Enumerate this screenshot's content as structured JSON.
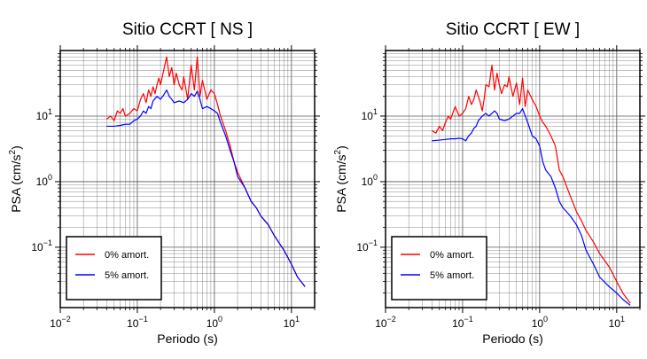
{
  "chart_data": [
    {
      "type": "line",
      "title": "Sitio CCRT [ NS ]",
      "xlabel": "Periodo (s)",
      "ylabel_main": "PSA (cm/s",
      "ylabel_exp": "2",
      "ylabel_close": ")",
      "x_scale": "log",
      "y_scale": "log",
      "xlim": [
        0.01,
        20
      ],
      "ylim": [
        0.012,
        100
      ],
      "grid": true,
      "legend_position": "bottom-left",
      "x_ticks": [
        {
          "value": 0.01,
          "base": "10",
          "exp": "−2"
        },
        {
          "value": 0.1,
          "base": "10",
          "exp": "−1"
        },
        {
          "value": 1,
          "base": "10",
          "exp": "0"
        },
        {
          "value": 10,
          "base": "10",
          "exp": "1"
        }
      ],
      "y_ticks": [
        {
          "value": 0.1,
          "base": "10",
          "exp": "−1"
        },
        {
          "value": 1,
          "base": "10",
          "exp": "0"
        },
        {
          "value": 10,
          "base": "10",
          "exp": "1"
        }
      ],
      "series": [
        {
          "name": "0% amort.",
          "color": "#ff0000",
          "x": [
            0.04,
            0.045,
            0.05,
            0.055,
            0.06,
            0.065,
            0.07,
            0.08,
            0.09,
            0.1,
            0.11,
            0.12,
            0.13,
            0.14,
            0.15,
            0.16,
            0.17,
            0.18,
            0.19,
            0.2,
            0.22,
            0.24,
            0.26,
            0.28,
            0.3,
            0.32,
            0.35,
            0.38,
            0.4,
            0.45,
            0.5,
            0.55,
            0.6,
            0.65,
            0.7,
            0.8,
            0.9,
            1.0,
            1.1,
            1.2,
            1.4,
            1.6,
            1.8,
            2.0,
            2.5,
            3.0,
            3.5,
            4.0,
            5.0,
            6.0,
            8.0,
            10,
            12,
            15
          ],
          "y": [
            9,
            10,
            8.5,
            12,
            11,
            13,
            10,
            11,
            13,
            12,
            18,
            22,
            16,
            25,
            20,
            28,
            22,
            30,
            38,
            30,
            50,
            80,
            40,
            55,
            30,
            45,
            30,
            25,
            40,
            18,
            60,
            25,
            80,
            20,
            35,
            18,
            25,
            22,
            15,
            10,
            6,
            3.5,
            2.0,
            1.4,
            0.8,
            0.5,
            0.4,
            0.3,
            0.22,
            0.15,
            0.09,
            0.055,
            0.035,
            0.025
          ]
        },
        {
          "name": "5% amort.",
          "color": "#0000ff",
          "x": [
            0.04,
            0.05,
            0.06,
            0.07,
            0.08,
            0.09,
            0.1,
            0.11,
            0.12,
            0.13,
            0.14,
            0.15,
            0.16,
            0.18,
            0.2,
            0.22,
            0.24,
            0.26,
            0.28,
            0.3,
            0.35,
            0.4,
            0.45,
            0.5,
            0.55,
            0.6,
            0.65,
            0.7,
            0.8,
            0.9,
            1.0,
            1.1,
            1.2,
            1.4,
            1.6,
            1.8,
            2.0,
            2.5,
            3.0,
            3.5,
            4.0,
            5.0,
            6.0,
            8.0,
            10,
            12,
            15
          ],
          "y": [
            7,
            7,
            7.2,
            7.5,
            7.5,
            8.5,
            9,
            10,
            12,
            11,
            14,
            13,
            17,
            20,
            18,
            21,
            25,
            20,
            18,
            16,
            17,
            16,
            18,
            22,
            20,
            24,
            18,
            13,
            14,
            13,
            12,
            11,
            8,
            5,
            3,
            2.0,
            1.2,
            0.8,
            0.5,
            0.4,
            0.3,
            0.22,
            0.15,
            0.09,
            0.055,
            0.035,
            0.025
          ]
        }
      ]
    },
    {
      "type": "line",
      "title": "Sitio CCRT [ EW ]",
      "xlabel": "Periodo (s)",
      "ylabel_main": "PSA (cm/s",
      "ylabel_exp": "2",
      "ylabel_close": ")",
      "x_scale": "log",
      "y_scale": "log",
      "xlim": [
        0.01,
        20
      ],
      "ylim": [
        0.012,
        100
      ],
      "grid": true,
      "legend_position": "bottom-left",
      "x_ticks": [
        {
          "value": 0.01,
          "base": "10",
          "exp": "−2"
        },
        {
          "value": 0.1,
          "base": "10",
          "exp": "−1"
        },
        {
          "value": 1,
          "base": "10",
          "exp": "0"
        },
        {
          "value": 10,
          "base": "10",
          "exp": "1"
        }
      ],
      "y_ticks": [
        {
          "value": 0.1,
          "base": "10",
          "exp": "−1"
        },
        {
          "value": 1,
          "base": "10",
          "exp": "0"
        },
        {
          "value": 10,
          "base": "10",
          "exp": "1"
        }
      ],
      "series": [
        {
          "name": "0% amort.",
          "color": "#ff0000",
          "x": [
            0.04,
            0.045,
            0.05,
            0.055,
            0.06,
            0.065,
            0.07,
            0.08,
            0.09,
            0.1,
            0.11,
            0.12,
            0.13,
            0.14,
            0.15,
            0.16,
            0.17,
            0.18,
            0.19,
            0.2,
            0.22,
            0.24,
            0.26,
            0.28,
            0.3,
            0.32,
            0.35,
            0.38,
            0.4,
            0.45,
            0.5,
            0.55,
            0.6,
            0.65,
            0.7,
            0.8,
            0.9,
            1.0,
            1.1,
            1.2,
            1.4,
            1.6,
            1.8,
            2.0,
            2.5,
            3.0,
            3.5,
            4.0,
            5.0,
            6.0,
            8.0,
            10,
            12,
            15
          ],
          "y": [
            6,
            5.5,
            7,
            6,
            8,
            10,
            9,
            14,
            10,
            11,
            13,
            20,
            15,
            18,
            25,
            20,
            16,
            12,
            18,
            30,
            28,
            60,
            25,
            45,
            30,
            22,
            30,
            28,
            40,
            20,
            32,
            15,
            38,
            14,
            25,
            18,
            14,
            10,
            8,
            7,
            5,
            3.5,
            1.5,
            1.2,
            0.6,
            0.35,
            0.25,
            0.18,
            0.12,
            0.08,
            0.05,
            0.03,
            0.02,
            0.014
          ]
        },
        {
          "name": "5% amort.",
          "color": "#0000ff",
          "x": [
            0.04,
            0.05,
            0.06,
            0.07,
            0.08,
            0.09,
            0.1,
            0.11,
            0.12,
            0.13,
            0.14,
            0.15,
            0.16,
            0.18,
            0.2,
            0.22,
            0.24,
            0.26,
            0.28,
            0.3,
            0.35,
            0.4,
            0.45,
            0.5,
            0.55,
            0.6,
            0.65,
            0.7,
            0.8,
            0.9,
            1.0,
            1.1,
            1.2,
            1.4,
            1.6,
            1.8,
            2.0,
            2.5,
            3.0,
            3.5,
            4.0,
            5.0,
            6.0,
            8.0,
            10,
            12,
            15
          ],
          "y": [
            4.2,
            4.3,
            4.4,
            4.5,
            4.5,
            4.6,
            4.5,
            4.2,
            5,
            5.5,
            6.5,
            7,
            8.5,
            10,
            11,
            10,
            11,
            12,
            11,
            9,
            8.5,
            9,
            10,
            11,
            11,
            13,
            10,
            8,
            5,
            4.5,
            3.5,
            2.0,
            1.5,
            1.2,
            0.8,
            0.5,
            0.4,
            0.3,
            0.22,
            0.15,
            0.09,
            0.055,
            0.035,
            0.025,
            0.02,
            0.016,
            0.013
          ]
        }
      ]
    }
  ]
}
